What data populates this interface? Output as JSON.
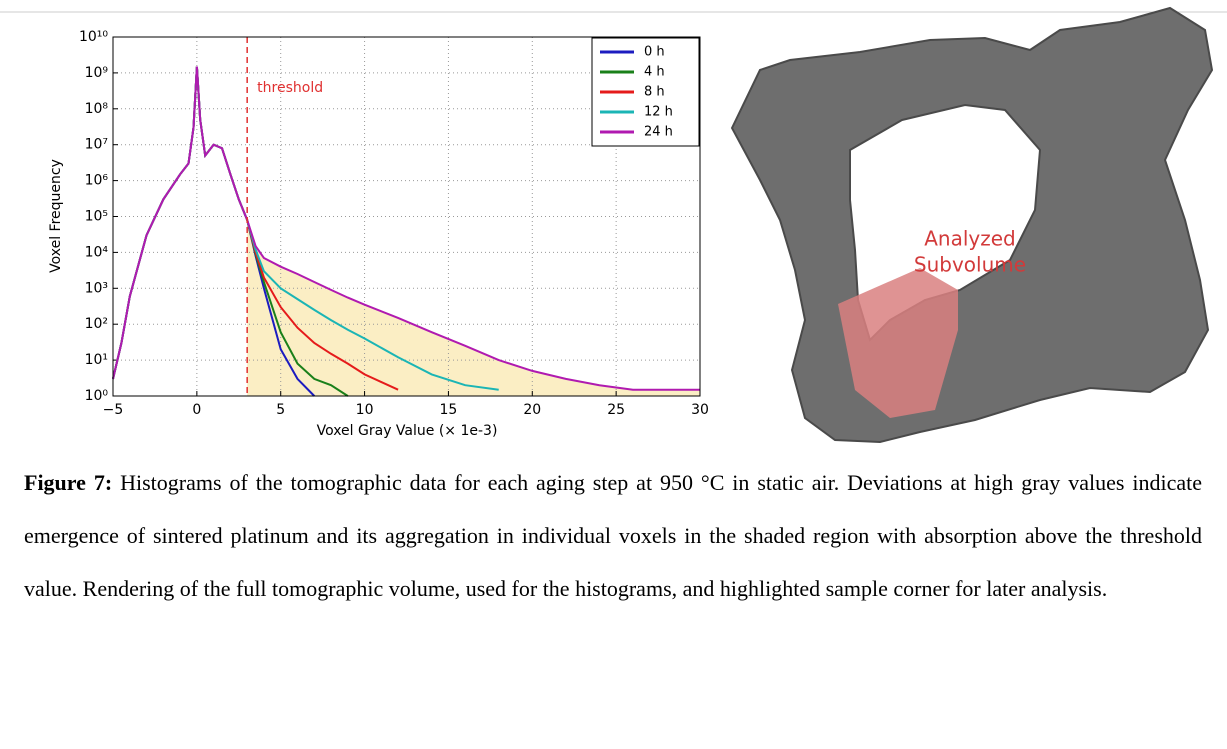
{
  "chart_data": {
    "type": "line",
    "y_label": "Voxel Frequency",
    "x_label": "Voxel Gray Value (× 1e-3)",
    "log_y": true,
    "grid": true,
    "legend": "upper right",
    "xlim": [
      -5,
      30
    ],
    "xticks": [
      {
        "value": -5,
        "label": "−5"
      },
      0,
      5,
      10,
      15,
      20,
      25,
      30
    ],
    "ylim": [
      1,
      10000000000
    ],
    "yticks": [
      {
        "value": 1,
        "label": "10⁰"
      },
      {
        "value": 10,
        "label": "10¹"
      },
      {
        "value": 100,
        "label": "10²"
      },
      {
        "value": 1000,
        "label": "10³"
      },
      {
        "value": 10000,
        "label": "10⁴"
      },
      {
        "value": 100000,
        "label": "10⁵"
      },
      {
        "value": 1000000,
        "label": "10⁶"
      },
      {
        "value": 10000000,
        "label": "10⁷"
      },
      {
        "value": 100000000,
        "label": "10⁸"
      },
      {
        "value": 1000000000,
        "label": "10⁹"
      },
      {
        "value": 10000000000,
        "label": "10¹⁰"
      }
    ],
    "threshold": {
      "value": 3,
      "label": "threshold",
      "color": "#e03030"
    },
    "shade_color": "#fbeec4",
    "x": [
      -5,
      -4.5,
      -4,
      -3,
      -2,
      -1,
      -0.5,
      -0.2,
      0,
      0.2,
      0.5,
      1,
      1.5,
      2,
      2.5,
      3,
      3.5,
      4,
      5,
      6,
      7,
      8,
      9,
      10,
      12,
      14,
      16,
      18,
      20,
      22,
      24,
      26,
      28,
      30
    ],
    "series": [
      {
        "name": "0 h",
        "color": "#1c1cc0",
        "values": [
          3,
          30,
          600,
          30000,
          300000,
          1500000,
          3000000,
          30000000,
          1500000000,
          50000000,
          5000000,
          10000000,
          8000000,
          1500000,
          300000,
          80000,
          8000,
          1000,
          20,
          3,
          1,
          null,
          null,
          null,
          null,
          null,
          null,
          null,
          null,
          null,
          null,
          null,
          null,
          null
        ]
      },
      {
        "name": "4 h",
        "color": "#1a801a",
        "values": [
          3,
          30,
          600,
          30000,
          300000,
          1500000,
          3000000,
          30000000,
          1500000000,
          50000000,
          5000000,
          10000000,
          8000000,
          1500000,
          300000,
          80000,
          9000,
          1500,
          60,
          8,
          3,
          2,
          1,
          null,
          null,
          null,
          null,
          null,
          null,
          null,
          null,
          null,
          null,
          null
        ]
      },
      {
        "name": "8 h",
        "color": "#e51b1b",
        "values": [
          3,
          30,
          600,
          30000,
          300000,
          1500000,
          3000000,
          30000000,
          1500000000,
          50000000,
          5000000,
          10000000,
          8000000,
          1500000,
          300000,
          80000,
          10000,
          2000,
          300,
          80,
          30,
          15,
          8,
          4,
          1.5,
          null,
          null,
          null,
          null,
          null,
          null,
          null,
          null,
          null
        ]
      },
      {
        "name": "12 h",
        "color": "#1bb5b5",
        "values": [
          3,
          30,
          600,
          30000,
          300000,
          1500000,
          3000000,
          30000000,
          1500000000,
          50000000,
          5000000,
          10000000,
          8000000,
          1500000,
          300000,
          80000,
          12000,
          3000,
          1000,
          500,
          250,
          130,
          70,
          40,
          12,
          4,
          2,
          1.5,
          null,
          null,
          null,
          null,
          null,
          null
        ]
      },
      {
        "name": "24 h",
        "color": "#b01ab0",
        "values": [
          3,
          30,
          600,
          30000,
          300000,
          1500000,
          3000000,
          30000000,
          1500000000,
          50000000,
          5000000,
          10000000,
          8000000,
          1500000,
          300000,
          80000,
          15000,
          7000,
          4000,
          2500,
          1500,
          900,
          550,
          350,
          150,
          60,
          25,
          10,
          5,
          3,
          2,
          1.5,
          1.5,
          1.5
        ]
      }
    ]
  },
  "image": {
    "label_lines": [
      "Analyzed",
      "Subvolume"
    ]
  },
  "caption": {
    "label": "Figure 7:",
    "text": " Histograms of the tomographic data for each aging step at 950 °C in static air. Deviations at high gray values indicate emergence of sintered platinum and its aggregation in individual voxels in the shaded region with absorption above the threshold value. Rendering of the full tomographic volume, used for the histograms, and highlighted sample corner for later analysis."
  }
}
